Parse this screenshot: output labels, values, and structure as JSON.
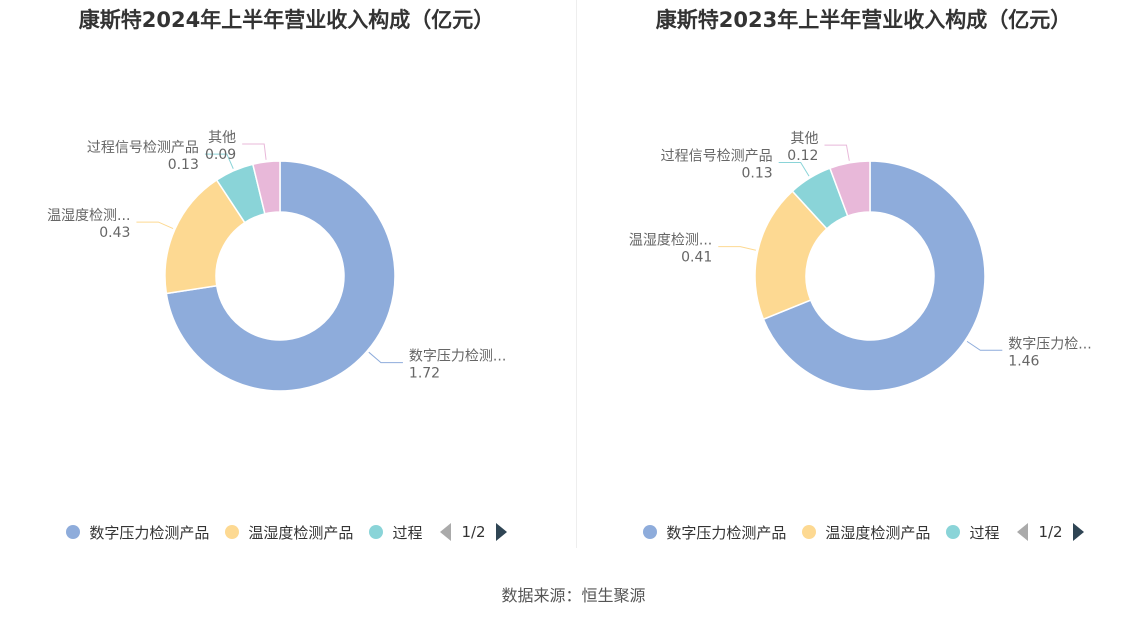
{
  "colors": {
    "series": [
      "#8eacdb",
      "#fdd992",
      "#8ad4d8",
      "#e8b8d9"
    ],
    "pager_active": "#2f4554",
    "pager_inactive": "#aaaaaa"
  },
  "left": {
    "title": "康斯特2024年上半年营业收入构成（亿元）",
    "legend": [
      "数字压力检测产品",
      "温湿度检测产品",
      "过程"
    ],
    "pager": "1/2"
  },
  "right": {
    "title": "康斯特2023年上半年营业收入构成（亿元）",
    "legend": [
      "数字压力检测产品",
      "温湿度检测产品",
      "过程"
    ],
    "pager": "1/2"
  },
  "source": "数据来源：恒生聚源",
  "chart_data": [
    {
      "type": "pie",
      "title": "康斯特2024年上半年营业收入构成（亿元）",
      "donut": true,
      "slices": [
        {
          "label": "数字压力检测产品",
          "display": "数字压力检测...",
          "value": 1.72
        },
        {
          "label": "温湿度检测产品",
          "display": "温湿度检测...",
          "value": 0.43
        },
        {
          "label": "过程信号检测产品",
          "display": "过程信号检测产品",
          "value": 0.13
        },
        {
          "label": "其他",
          "display": "其他",
          "value": 0.09
        }
      ],
      "legend_position": "bottom"
    },
    {
      "type": "pie",
      "title": "康斯特2023年上半年营业收入构成（亿元）",
      "donut": true,
      "slices": [
        {
          "label": "数字压力检测产品",
          "display": "数字压力检...",
          "value": 1.46
        },
        {
          "label": "温湿度检测产品",
          "display": "温湿度检测...",
          "value": 0.41
        },
        {
          "label": "过程信号检测产品",
          "display": "过程信号检测产品",
          "value": 0.13
        },
        {
          "label": "其他",
          "display": "其他",
          "value": 0.12
        }
      ],
      "legend_position": "bottom"
    }
  ]
}
